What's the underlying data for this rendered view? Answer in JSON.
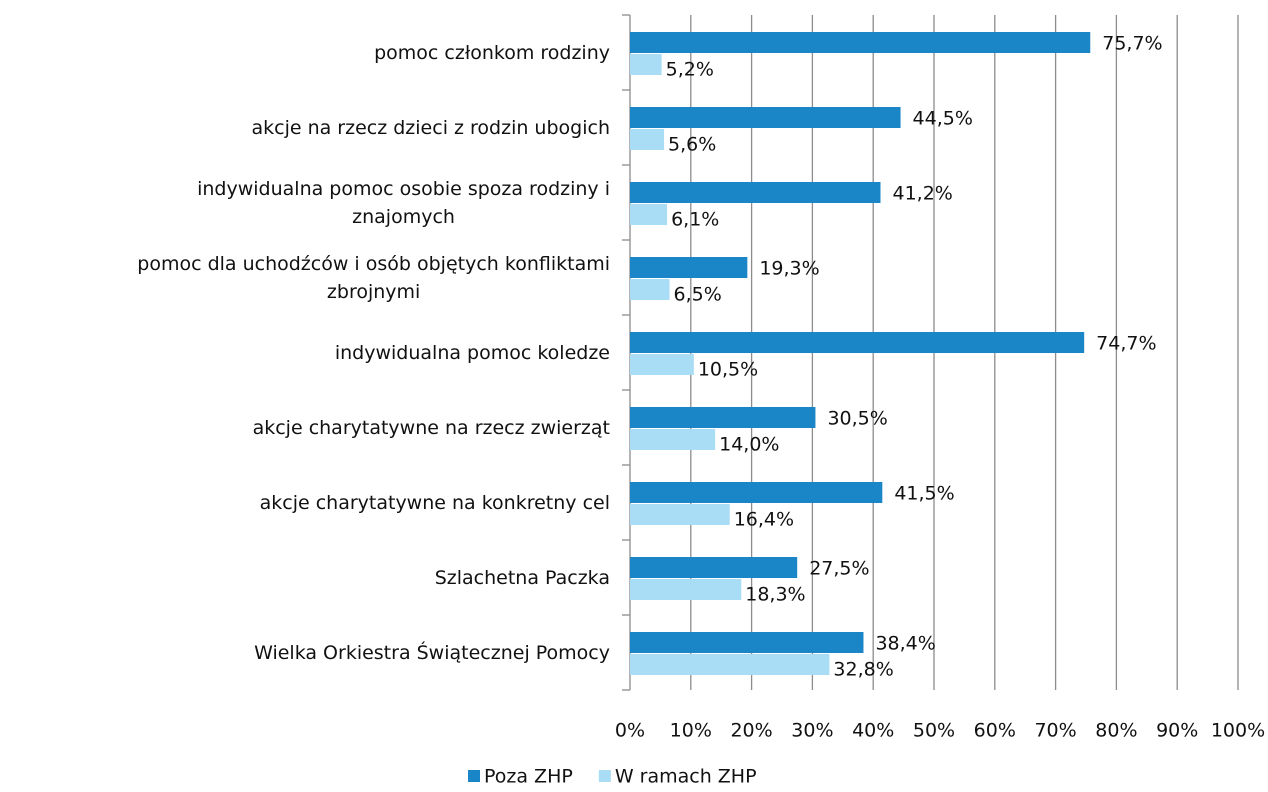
{
  "chart_data": {
    "type": "hbar",
    "categories": [
      "pomoc członkom rodziny",
      "akcje na rzecz dzieci z rodzin ubogich",
      "indywidualna pomoc osobie spoza rodziny i\nznajomych",
      "pomoc dla uchodźców i osób objętych konfliktami\nzbrojnymi",
      "indywidualna pomoc koledze",
      "akcje charytatywne na rzecz zwierząt",
      "akcje charytatywne na konkretny cel",
      "Szlachetna Paczka",
      "Wielka Orkiestra Świątecznej Pomocy"
    ],
    "series": [
      {
        "name": "Poza ZHP",
        "color": "#1a86c8",
        "values": [
          75.7,
          44.5,
          41.2,
          19.3,
          74.7,
          30.5,
          41.5,
          27.5,
          38.4
        ],
        "value_labels": [
          "75,7%",
          "44,5%",
          "41,2%",
          "19,3%",
          "74,7%",
          "30,5%",
          "41,5%",
          "27,5%",
          "38,4%"
        ]
      },
      {
        "name": "W ramach ZHP",
        "color": "#a9dcf5",
        "values": [
          5.2,
          5.6,
          6.1,
          6.5,
          10.5,
          14.0,
          16.4,
          18.3,
          32.8
        ],
        "value_labels": [
          "5,2%",
          "5,6%",
          "6,1%",
          "6,5%",
          "10,5%",
          "14,0%",
          "16,4%",
          "18,3%",
          "32,8%"
        ]
      }
    ],
    "xlim": [
      0,
      100
    ],
    "xticks": [
      {
        "value": 0,
        "label": "0%"
      },
      {
        "value": 10,
        "label": "10%"
      },
      {
        "value": 20,
        "label": "20%"
      },
      {
        "value": 30,
        "label": "30%"
      },
      {
        "value": 40,
        "label": "40%"
      },
      {
        "value": 50,
        "label": "50%"
      },
      {
        "value": 60,
        "label": "60%"
      },
      {
        "value": 70,
        "label": "70%"
      },
      {
        "value": 80,
        "label": "80%"
      },
      {
        "value": 90,
        "label": "90%"
      },
      {
        "value": 100,
        "label": "100%"
      }
    ],
    "grid": true,
    "legend": "bottom"
  }
}
